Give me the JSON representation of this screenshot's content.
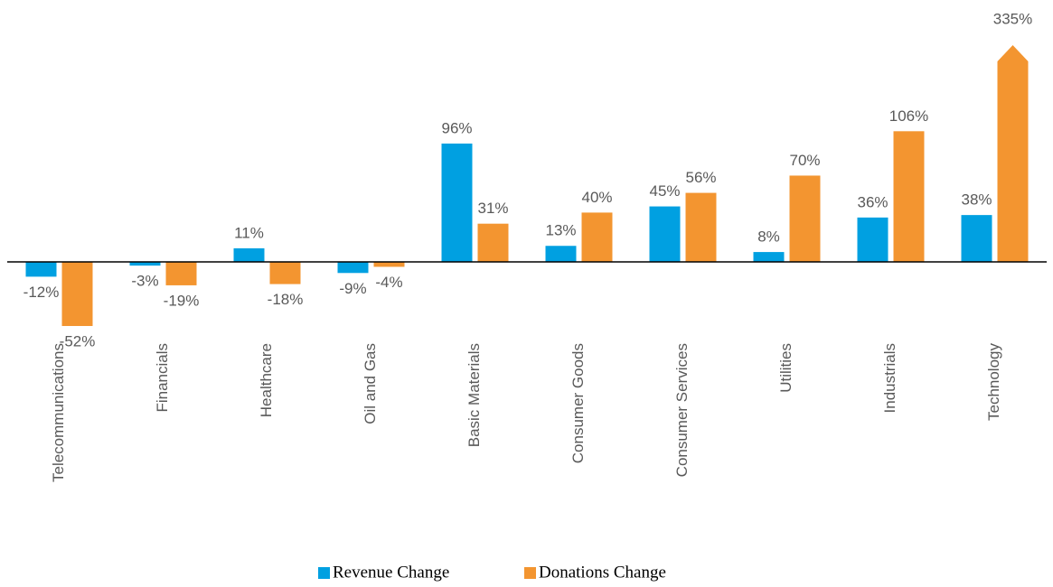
{
  "chart_data": {
    "type": "bar",
    "categories": [
      "Telecommunications",
      "Financials",
      "Healthcare",
      "Oil and Gas",
      "Basic Materials",
      "Consumer Goods",
      "Consumer Services",
      "Utilities",
      "Industrials",
      "Technology"
    ],
    "series": [
      {
        "name": "Revenue Change",
        "color": "#00a0e1",
        "values": [
          -12,
          -3,
          11,
          -9,
          96,
          13,
          45,
          8,
          36,
          38
        ],
        "value_labels": [
          "-12%",
          "-3%",
          "11%",
          "-9%",
          "96%",
          "13%",
          "45%",
          "8%",
          "36%",
          "38%"
        ]
      },
      {
        "name": "Donations Change",
        "color": "#f39530",
        "values": [
          -52,
          -19,
          -18,
          -4,
          31,
          40,
          56,
          70,
          106,
          335
        ],
        "value_labels": [
          "-52%",
          "-19%",
          "-18%",
          "-4%",
          "31%",
          "40%",
          "56%",
          "70%",
          "106%",
          "335%"
        ]
      }
    ],
    "legend": "bottom"
  }
}
